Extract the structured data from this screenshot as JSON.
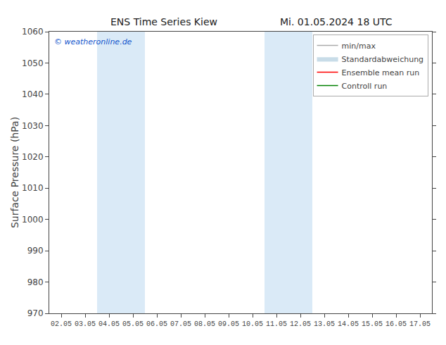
{
  "chart_data": {
    "type": "line",
    "title": "ENS Time Series Kiew",
    "subtitle": "Mi. 01.05.2024 18 UTC",
    "ylabel": "Surface Pressure (hPa)",
    "categories": [
      "02.05",
      "03.05",
      "04.05",
      "05.05",
      "06.05",
      "07.05",
      "08.05",
      "09.05",
      "10.05",
      "11.05",
      "12.05",
      "13.05",
      "14.05",
      "15.05",
      "16.05",
      "17.05"
    ],
    "series": [
      {
        "name": "min/max",
        "type": "line",
        "color": "#aaaaaa",
        "values": [
          null,
          null,
          null,
          null,
          null,
          null,
          null,
          null,
          null,
          null,
          null,
          null,
          null,
          null,
          null,
          null
        ]
      },
      {
        "name": "Standardabweichung",
        "type": "area",
        "color": "#c8dce8",
        "values": [
          null,
          null,
          null,
          null,
          null,
          null,
          null,
          null,
          null,
          null,
          null,
          null,
          null,
          null,
          null,
          null
        ]
      },
      {
        "name": "Ensemble mean run",
        "type": "line",
        "color": "#ff0000",
        "values": [
          null,
          null,
          null,
          null,
          null,
          null,
          null,
          null,
          null,
          null,
          null,
          null,
          null,
          null,
          null,
          null
        ]
      },
      {
        "name": "Controll run",
        "type": "line",
        "color": "#008000",
        "values": [
          null,
          null,
          null,
          null,
          null,
          null,
          null,
          null,
          null,
          null,
          null,
          null,
          null,
          null,
          null,
          null
        ]
      }
    ],
    "shaded_regions": [
      {
        "from": "04.05",
        "to": "05.05",
        "color": "#daeaf7"
      },
      {
        "from": "11.05",
        "to": "12.05",
        "color": "#daeaf7"
      }
    ],
    "annotations": [
      {
        "text": "© weatheronline.de",
        "color": "#1155cc"
      }
    ],
    "ylim": [
      970,
      1060
    ],
    "yticks": [
      970,
      980,
      990,
      1000,
      1010,
      1020,
      1030,
      1040,
      1050,
      1060
    ],
    "grid": false,
    "legend": "upper right"
  }
}
